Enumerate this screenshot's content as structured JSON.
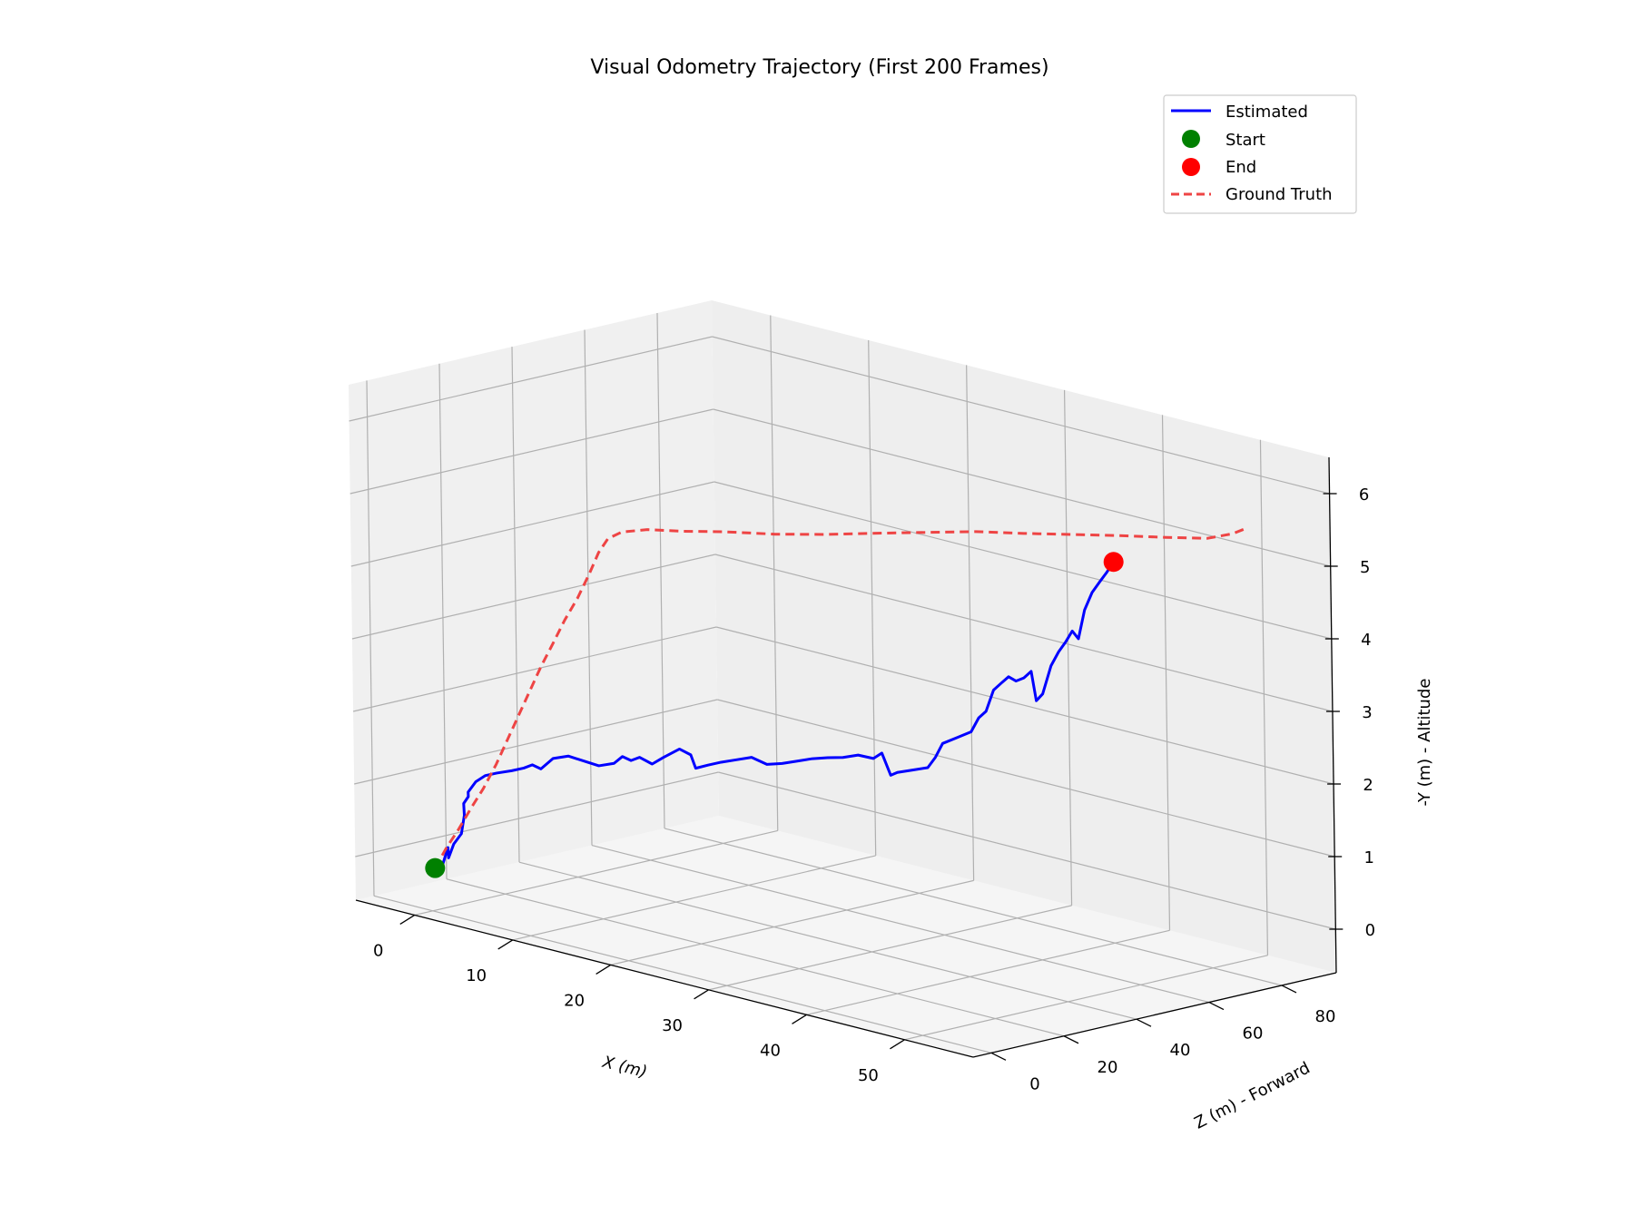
{
  "chart_data": {
    "type": "line3d",
    "title": "Visual Odometry Trajectory (First 200 Frames)",
    "xlabel": "X (m)",
    "ylabel": "Z (m) - Forward",
    "zlabel": "-Y (m) - Altitude",
    "xlim": [
      -6,
      57
    ],
    "ylim": [
      -5,
      95
    ],
    "zlim": [
      -0.6,
      6.5
    ],
    "x_ticks": [
      0,
      10,
      20,
      30,
      40,
      50
    ],
    "y_ticks": [
      0,
      20,
      40,
      60,
      80
    ],
    "z_ticks": [
      0,
      1,
      2,
      3,
      4,
      5,
      6
    ],
    "grid": true,
    "legend_position": "top-right",
    "colors": {
      "estimated": "#0000ff",
      "ground_truth": "#ee4444",
      "start": "#008000",
      "end": "#ff0000"
    },
    "legend": [
      {
        "label": "Estimated",
        "kind": "line",
        "color": "#0000ff"
      },
      {
        "label": "Start",
        "kind": "marker",
        "color": "#008000"
      },
      {
        "label": "End",
        "kind": "marker",
        "color": "#ff0000"
      },
      {
        "label": "Ground Truth",
        "kind": "dashed",
        "color": "#ee4444"
      }
    ],
    "series": [
      {
        "name": "Estimated",
        "style": "solid",
        "color": "#0000ff",
        "points": [
          [
            0.3,
            0.0,
            0.0
          ],
          [
            0.8,
            0.7,
            0.05
          ],
          [
            1.2,
            1.2,
            0.3
          ],
          [
            1.1,
            1.6,
            0.15
          ],
          [
            1.5,
            2.0,
            0.35
          ],
          [
            2.0,
            2.8,
            0.5
          ],
          [
            2.1,
            3.4,
            0.75
          ],
          [
            1.9,
            3.8,
            0.9
          ],
          [
            2.2,
            4.3,
            1.0
          ],
          [
            2.0,
            4.8,
            1.05
          ],
          [
            2.5,
            5.6,
            1.2
          ],
          [
            3.2,
            6.4,
            1.3
          ],
          [
            4.0,
            7.4,
            1.35
          ],
          [
            5.0,
            8.8,
            1.4
          ],
          [
            5.8,
            10.0,
            1.45
          ],
          [
            6.3,
            11.0,
            1.5
          ],
          [
            6.8,
            12.0,
            1.45
          ],
          [
            7.5,
            13.5,
            1.6
          ],
          [
            8.5,
            15.0,
            1.65
          ],
          [
            9.5,
            16.5,
            1.6
          ],
          [
            10.5,
            18.0,
            1.55
          ],
          [
            11.5,
            19.5,
            1.6
          ],
          [
            12.0,
            20.5,
            1.7
          ],
          [
            12.5,
            21.5,
            1.65
          ],
          [
            13.0,
            22.5,
            1.7
          ],
          [
            13.8,
            23.8,
            1.62
          ],
          [
            14.5,
            25.0,
            1.72
          ],
          [
            15.5,
            26.8,
            1.85
          ],
          [
            16.2,
            28.0,
            1.78
          ],
          [
            16.5,
            28.5,
            1.6
          ],
          [
            17.2,
            30.0,
            1.65
          ],
          [
            18.0,
            31.5,
            1.7
          ],
          [
            19.0,
            33.0,
            1.75
          ],
          [
            20.0,
            34.5,
            1.8
          ],
          [
            21.0,
            36.0,
            1.72
          ],
          [
            22.0,
            37.5,
            1.75
          ],
          [
            23.0,
            39.0,
            1.8
          ],
          [
            24.0,
            40.5,
            1.85
          ],
          [
            25.0,
            42.0,
            1.88
          ],
          [
            26.0,
            43.5,
            1.9
          ],
          [
            27.0,
            45.0,
            1.95
          ],
          [
            28.0,
            46.5,
            1.92
          ],
          [
            28.5,
            47.5,
            2.0
          ],
          [
            29.0,
            48.5,
            1.7
          ],
          [
            29.5,
            49.0,
            1.75
          ],
          [
            30.5,
            50.5,
            1.8
          ],
          [
            31.5,
            52.0,
            1.85
          ],
          [
            32.0,
            52.8,
            2.0
          ],
          [
            32.5,
            53.5,
            2.2
          ],
          [
            33.5,
            54.8,
            2.3
          ],
          [
            34.5,
            56.0,
            2.4
          ],
          [
            35.0,
            56.8,
            2.6
          ],
          [
            35.5,
            57.5,
            2.7
          ],
          [
            36.0,
            58.3,
            3.0
          ],
          [
            36.5,
            59.0,
            3.1
          ],
          [
            37.0,
            59.8,
            3.2
          ],
          [
            37.5,
            60.5,
            3.15
          ],
          [
            38.0,
            61.3,
            3.2
          ],
          [
            38.5,
            62.0,
            3.3
          ],
          [
            38.8,
            62.5,
            2.9
          ],
          [
            39.2,
            63.2,
            3.0
          ],
          [
            39.8,
            64.0,
            3.4
          ],
          [
            40.3,
            64.8,
            3.6
          ],
          [
            40.8,
            65.5,
            3.75
          ],
          [
            41.2,
            66.2,
            3.9
          ],
          [
            41.6,
            66.8,
            3.8
          ],
          [
            42.0,
            67.5,
            4.2
          ],
          [
            42.5,
            68.3,
            4.45
          ],
          [
            43.0,
            69.0,
            4.6
          ],
          [
            43.5,
            69.8,
            4.75
          ],
          [
            44.0,
            70.3,
            4.9
          ]
        ]
      },
      {
        "name": "Ground Truth",
        "style": "dashed",
        "color": "#ee4444",
        "points": [
          [
            0.3,
            0.0,
            0.0
          ],
          [
            1.0,
            1.2,
            0.28
          ],
          [
            1.8,
            2.5,
            0.55
          ],
          [
            2.6,
            3.8,
            0.85
          ],
          [
            3.5,
            5.0,
            1.15
          ],
          [
            4.4,
            6.2,
            1.5
          ],
          [
            5.2,
            7.2,
            1.85
          ],
          [
            6.0,
            8.2,
            2.2
          ],
          [
            6.8,
            9.2,
            2.55
          ],
          [
            7.6,
            10.2,
            2.9
          ],
          [
            8.5,
            11.3,
            3.25
          ],
          [
            9.3,
            12.4,
            3.58
          ],
          [
            10.2,
            13.6,
            3.9
          ],
          [
            11.0,
            14.8,
            4.25
          ],
          [
            11.6,
            15.8,
            4.55
          ],
          [
            12.2,
            16.8,
            4.75
          ],
          [
            13.0,
            18.5,
            4.85
          ],
          [
            14.5,
            21.5,
            4.9
          ],
          [
            16.5,
            25.5,
            4.9
          ],
          [
            19.0,
            30.5,
            4.92
          ],
          [
            22.0,
            36.5,
            4.92
          ],
          [
            25.0,
            42.5,
            4.95
          ],
          [
            28.0,
            48.5,
            5.0
          ],
          [
            31.0,
            54.0,
            5.05
          ],
          [
            34.0,
            59.5,
            5.1
          ],
          [
            37.0,
            64.5,
            5.12
          ],
          [
            40.0,
            69.5,
            5.15
          ],
          [
            43.0,
            74.5,
            5.18
          ],
          [
            46.0,
            79.5,
            5.2
          ],
          [
            48.5,
            84.0,
            5.22
          ],
          [
            50.0,
            87.0,
            5.3
          ],
          [
            51.0,
            88.5,
            5.4
          ]
        ]
      }
    ],
    "start_point": [
      0.3,
      0.0,
      0.0
    ],
    "end_point": [
      44.0,
      70.3,
      4.9
    ]
  }
}
